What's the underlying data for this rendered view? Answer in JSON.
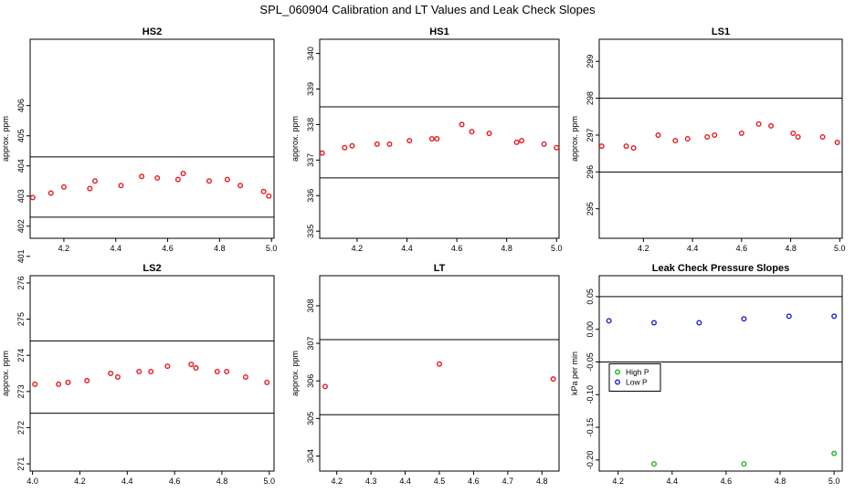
{
  "figure": {
    "title": "SPL_060904  Calibration and LT Values and Leak Check Slopes"
  },
  "chart_data": [
    {
      "type": "scatter",
      "title": "HS2",
      "ylabel": "approx. ppm",
      "xlim": [
        4.07,
        5.01
      ],
      "ylim": [
        401.6,
        408.2
      ],
      "xticks": [
        4.2,
        4.4,
        4.6,
        4.8,
        5.0
      ],
      "xtick_labels": [
        "4.2",
        "4.4",
        "4.6",
        "4.8",
        "5.0"
      ],
      "yticks": [
        401,
        402,
        403,
        404,
        405,
        406
      ],
      "ytick_labels": [
        "401",
        "402",
        "403",
        "404",
        "405",
        "406"
      ],
      "hlines": [
        402.3,
        404.3
      ],
      "series": [
        {
          "color": "#e41a1c",
          "x": [
            4.08,
            4.15,
            4.2,
            4.3,
            4.32,
            4.42,
            4.5,
            4.56,
            4.64,
            4.66,
            4.76,
            4.83,
            4.88,
            4.97,
            4.99
          ],
          "y": [
            402.95,
            403.1,
            403.3,
            403.25,
            403.5,
            403.35,
            403.65,
            403.6,
            403.55,
            403.75,
            403.5,
            403.55,
            403.35,
            403.15,
            403.0
          ]
        }
      ]
    },
    {
      "type": "scatter",
      "title": "HS1",
      "ylabel": "approx. ppm",
      "xlim": [
        4.05,
        5.01
      ],
      "ylim": [
        334.8,
        340.4
      ],
      "xticks": [
        4.2,
        4.4,
        4.6,
        4.8,
        5.0
      ],
      "xtick_labels": [
        "4.2",
        "4.4",
        "4.6",
        "4.8",
        "5.0"
      ],
      "yticks": [
        335,
        336,
        337,
        338,
        339,
        340
      ],
      "ytick_labels": [
        "335",
        "336",
        "337",
        "338",
        "339",
        "340"
      ],
      "hlines": [
        336.5,
        338.5
      ],
      "series": [
        {
          "color": "#e41a1c",
          "x": [
            4.06,
            4.15,
            4.18,
            4.28,
            4.33,
            4.41,
            4.5,
            4.52,
            4.62,
            4.66,
            4.73,
            4.84,
            4.86,
            4.95,
            5.0
          ],
          "y": [
            337.2,
            337.35,
            337.4,
            337.45,
            337.45,
            337.55,
            337.6,
            337.6,
            338.0,
            337.8,
            337.75,
            337.5,
            337.55,
            337.45,
            337.35
          ]
        }
      ]
    },
    {
      "type": "scatter",
      "title": "LS1",
      "ylabel": "approx. ppm",
      "xlim": [
        4.02,
        5.01
      ],
      "ylim": [
        294.2,
        299.6
      ],
      "xticks": [
        4.2,
        4.4,
        4.6,
        4.8,
        5.0
      ],
      "xtick_labels": [
        "4.2",
        "4.4",
        "4.6",
        "4.8",
        "5.0"
      ],
      "yticks": [
        295,
        296,
        297,
        298,
        299
      ],
      "ytick_labels": [
        "295",
        "296",
        "297",
        "298",
        "299"
      ],
      "hlines": [
        296.0,
        298.0
      ],
      "series": [
        {
          "color": "#e41a1c",
          "x": [
            4.03,
            4.13,
            4.16,
            4.26,
            4.33,
            4.38,
            4.46,
            4.49,
            4.6,
            4.67,
            4.72,
            4.81,
            4.83,
            4.93,
            4.99
          ],
          "y": [
            296.7,
            296.7,
            296.65,
            297.0,
            296.85,
            296.9,
            296.95,
            297.0,
            297.05,
            297.3,
            297.25,
            297.05,
            296.95,
            296.95,
            296.8
          ]
        }
      ]
    },
    {
      "type": "scatter",
      "title": "LS2",
      "ylabel": "approx. ppm",
      "xlim": [
        3.99,
        5.02
      ],
      "ylim": [
        270.8,
        276.2
      ],
      "xticks": [
        4.0,
        4.2,
        4.4,
        4.6,
        4.8,
        5.0
      ],
      "xtick_labels": [
        "4.0",
        "4.2",
        "4.4",
        "4.6",
        "4.8",
        "5.0"
      ],
      "yticks": [
        271,
        272,
        273,
        274,
        275,
        276
      ],
      "ytick_labels": [
        "271",
        "272",
        "273",
        "274",
        "275",
        "276"
      ],
      "hlines": [
        272.4,
        274.4
      ],
      "series": [
        {
          "color": "#e41a1c",
          "x": [
            4.01,
            4.11,
            4.15,
            4.23,
            4.33,
            4.36,
            4.45,
            4.5,
            4.57,
            4.67,
            4.69,
            4.78,
            4.82,
            4.9,
            4.99
          ],
          "y": [
            273.2,
            273.2,
            273.25,
            273.3,
            273.5,
            273.4,
            273.55,
            273.55,
            273.7,
            273.75,
            273.65,
            273.55,
            273.55,
            273.4,
            273.25
          ]
        }
      ]
    },
    {
      "type": "scatter",
      "title": "LT",
      "ylabel": "approx. ppm",
      "xlim": [
        4.15,
        4.85
      ],
      "ylim": [
        303.6,
        308.8
      ],
      "xticks": [
        4.2,
        4.3,
        4.4,
        4.5,
        4.6,
        4.7,
        4.8
      ],
      "xtick_labels": [
        "4.2",
        "4.3",
        "4.4",
        "4.5",
        "4.6",
        "4.7",
        "4.8"
      ],
      "yticks": [
        304,
        305,
        306,
        307,
        308
      ],
      "ytick_labels": [
        "304",
        "305",
        "306",
        "307",
        "308"
      ],
      "hlines": [
        305.1,
        307.1
      ],
      "series": [
        {
          "color": "#e41a1c",
          "x": [
            4.166,
            4.5,
            4.833
          ],
          "y": [
            305.85,
            306.45,
            306.05
          ]
        }
      ]
    },
    {
      "type": "scatter",
      "title": "Leak Check Pressure Slopes",
      "ylabel": "kPa per min",
      "xlim": [
        4.13,
        5.03
      ],
      "ylim": [
        -0.217,
        0.082
      ],
      "xticks": [
        4.2,
        4.4,
        4.6,
        4.8,
        5.0
      ],
      "xtick_labels": [
        "4.2",
        "4.4",
        "4.6",
        "4.8",
        "5.0"
      ],
      "yticks": [
        -0.2,
        -0.15,
        -0.1,
        -0.05,
        0.0,
        0.05
      ],
      "ytick_labels": [
        "-0.20",
        "-0.15",
        "-0.10",
        "-0.05",
        "0.00",
        "0.05"
      ],
      "hlines": [
        -0.05,
        0.05
      ],
      "legend": {
        "position": "left",
        "items": [
          "High P",
          "Low P"
        ]
      },
      "series": [
        {
          "name": "High P",
          "color": "#1fb51f",
          "x": [
            4.333,
            4.666,
            5.0
          ],
          "y": [
            -0.206,
            -0.206,
            -0.19
          ]
        },
        {
          "name": "Low P",
          "color": "#1f1fd6",
          "x": [
            4.166,
            4.333,
            4.5,
            4.666,
            4.833,
            5.0
          ],
          "y": [
            0.013,
            0.01,
            0.01,
            0.016,
            0.02,
            0.02
          ]
        }
      ]
    }
  ]
}
